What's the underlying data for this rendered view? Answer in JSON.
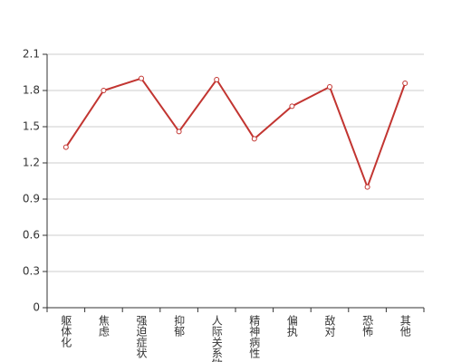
{
  "chart_data": {
    "type": "line",
    "categories": [
      "躯体化",
      "焦虑",
      "强迫症状",
      "抑郁",
      "人际关系敏感",
      "精神病性",
      "偏执",
      "敌对",
      "恐怖",
      "其他"
    ],
    "series": [
      {
        "color": "#c23531",
        "values": [
          1.33,
          1.8,
          1.9,
          1.46,
          1.89,
          1.4,
          1.67,
          1.83,
          1.0,
          1.86
        ]
      }
    ],
    "ylim": [
      0,
      2.1
    ],
    "yticks": [
      0,
      0.3,
      0.6,
      0.9,
      1.2,
      1.5,
      1.8,
      2.1
    ],
    "grid": true
  }
}
